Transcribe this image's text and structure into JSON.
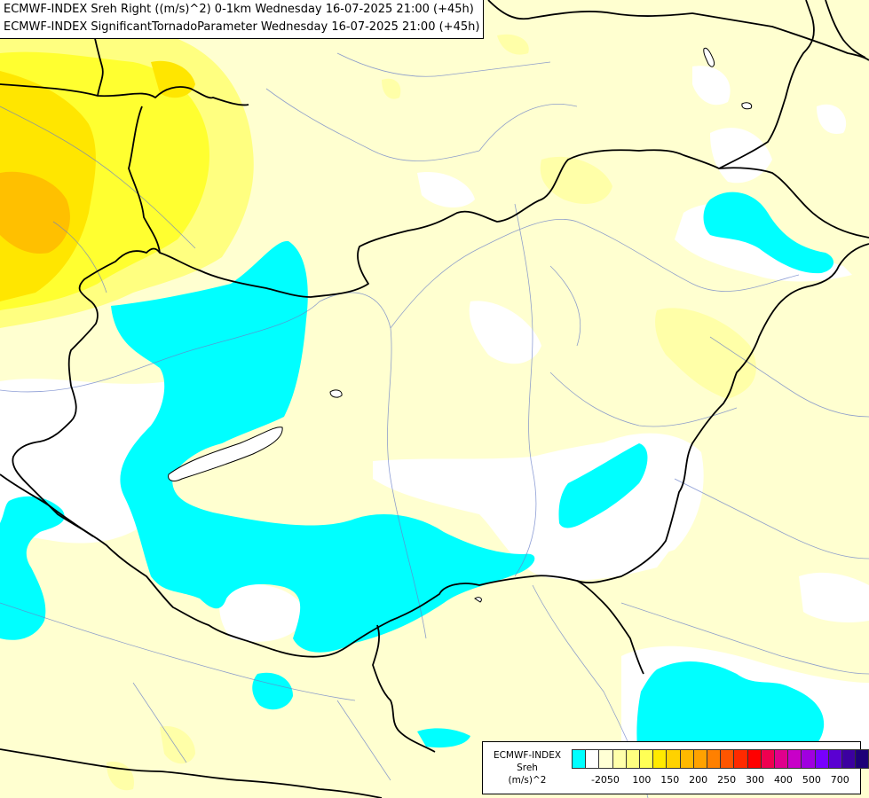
{
  "titles": [
    "ECMWF-INDEX Sreh Right ((m/s)^2) 0-1km Wednesday 16-07-2025 21:00 (+45h)",
    "ECMWF-INDEX SignificantTornadoParameter Wednesday 16-07-2025 21:00 (+45h)"
  ],
  "legend": {
    "source": "ECMWF-INDEX",
    "variable": "Sreh",
    "unit": "(m/s)^2",
    "colors": [
      "#00ffff",
      "#ffffff",
      "#ffffd5",
      "#ffffaa",
      "#ffff80",
      "#ffff55",
      "#ffea00",
      "#ffd200",
      "#ffb900",
      "#ffa200",
      "#ff8000",
      "#ff5500",
      "#ff2a00",
      "#ff0000",
      "#f00050",
      "#e0008c",
      "#c800c8",
      "#a000e0",
      "#7800ff",
      "#5a00d2",
      "#3c00a0",
      "#1e0078"
    ],
    "ticks": [
      {
        "label": "-20",
        "index": 1
      },
      {
        "label": "50",
        "index": 2
      },
      {
        "label": "100",
        "index": 4
      },
      {
        "label": "150",
        "index": 6
      },
      {
        "label": "200",
        "index": 8
      },
      {
        "label": "250",
        "index": 10
      },
      {
        "label": "300",
        "index": 12
      },
      {
        "label": "400",
        "index": 14
      },
      {
        "label": "500",
        "index": 16
      },
      {
        "label": "700",
        "index": 18
      }
    ]
  },
  "field_colors": {
    "cyan": "#00ffff",
    "pale": "#ffffd0",
    "light": "#ffffa8",
    "yellow": "#ffff30",
    "gold": "#ffe600",
    "orange": "#ffc000",
    "white": "#ffffff"
  }
}
